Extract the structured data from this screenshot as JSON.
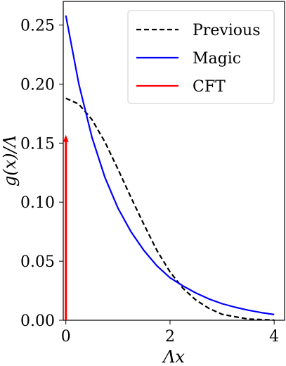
{
  "chart_data": {
    "type": "line",
    "xlabel": "Λx",
    "ylabel": "g(x)/Λ",
    "xlim": [
      -0.05,
      4.2
    ],
    "ylim": [
      0,
      0.27
    ],
    "xticks": [
      0,
      2,
      4
    ],
    "xtick_labels": [
      "0",
      "2",
      "4"
    ],
    "yticks": [
      0.0,
      0.05,
      0.1,
      0.15,
      0.2,
      0.25
    ],
    "ytick_labels": [
      "0.00",
      "0.05",
      "0.10",
      "0.15",
      "0.20",
      "0.25"
    ],
    "legend_position": "top-right",
    "series": [
      {
        "name": "Previous",
        "style": "dashed",
        "color": "#000000",
        "x": [
          0,
          0.25,
          0.5,
          0.75,
          1.0,
          1.25,
          1.5,
          1.75,
          2.0,
          2.25,
          2.5,
          2.75,
          3.0,
          3.25,
          3.5,
          3.75,
          4.0
        ],
        "y": [
          0.188,
          0.183,
          0.17,
          0.151,
          0.128,
          0.104,
          0.081,
          0.059,
          0.041,
          0.027,
          0.017,
          0.01,
          0.005,
          0.003,
          0.001,
          0.0006,
          0.0002
        ]
      },
      {
        "name": "Magic",
        "style": "solid",
        "color": "#0000ff",
        "x": [
          0,
          0.25,
          0.5,
          0.75,
          1.0,
          1.25,
          1.5,
          1.75,
          2.0,
          2.25,
          2.5,
          2.75,
          3.0,
          3.25,
          3.5,
          3.75,
          4.0
        ],
        "y": [
          0.258,
          0.2,
          0.155,
          0.121,
          0.095,
          0.075,
          0.059,
          0.046,
          0.036,
          0.029,
          0.023,
          0.018,
          0.014,
          0.011,
          0.0085,
          0.0065,
          0.0048
        ]
      },
      {
        "name": "CFT",
        "style": "arrow",
        "color": "#ff0000",
        "x": [
          0,
          0
        ],
        "y": [
          0,
          0.157
        ]
      }
    ]
  }
}
